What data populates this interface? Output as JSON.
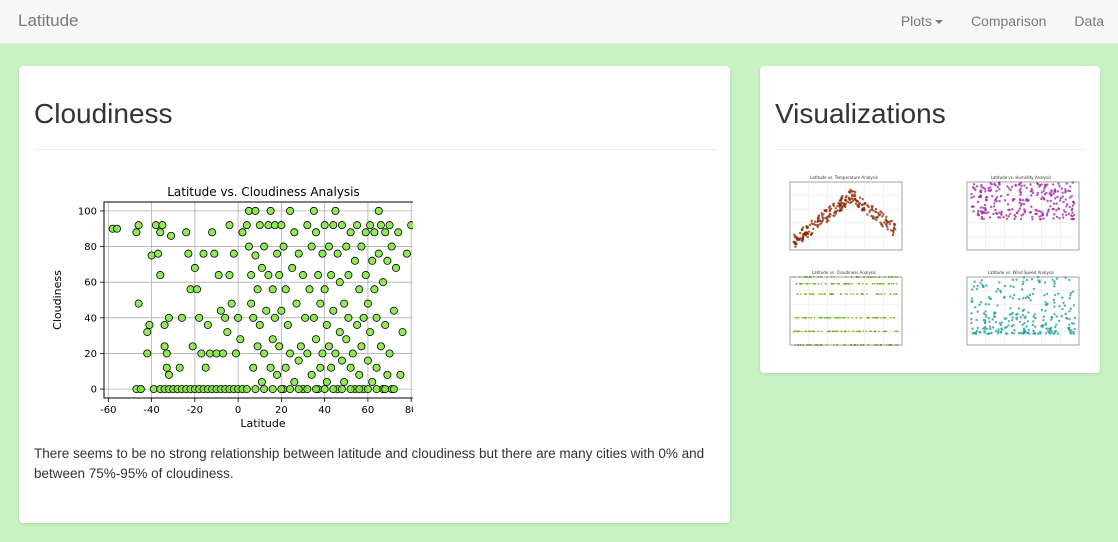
{
  "navbar": {
    "brand": "Latitude",
    "items": [
      {
        "label": "Plots",
        "dropdown": true
      },
      {
        "label": "Comparison"
      },
      {
        "label": "Data"
      }
    ]
  },
  "main": {
    "title": "Cloudiness",
    "description": "There seems to be no strong relationship between latitude and cloudiness but there are many cities with 0% and between 75%-95% of cloudiness."
  },
  "sidebar": {
    "title": "Visualizations",
    "thumbnails": [
      {
        "title": "Latitude vs. Temperature Analysis",
        "color": "#8b2500"
      },
      {
        "title": "Latitude vs. Humidity Analysis",
        "color": "#9b1fa0"
      },
      {
        "title": "Latitude vs. Cloudiness Analysis",
        "color": "#5fa800"
      },
      {
        "title": "Latitude vs. Wind Speed Analysis",
        "color": "#1a9a9a"
      }
    ]
  },
  "chart_data": {
    "type": "scatter",
    "title": "Latitude vs. Cloudiness Analysis",
    "xlabel": "Latitude",
    "ylabel": "Cloudiness",
    "xlim": [
      -62,
      85
    ],
    "ylim": [
      -5,
      105
    ],
    "xticks": [
      -60,
      -40,
      -20,
      0,
      20,
      40,
      60,
      80
    ],
    "yticks": [
      0,
      20,
      40,
      60,
      80,
      100
    ],
    "grid": true,
    "marker_color": "#7ee83a",
    "marker_edge": "#000000",
    "points": [
      [
        -58,
        90
      ],
      [
        -56,
        90
      ],
      [
        -47,
        88
      ],
      [
        -46,
        92
      ],
      [
        -46,
        48
      ],
      [
        -45,
        0
      ],
      [
        -42,
        32
      ],
      [
        -41,
        36
      ],
      [
        -40,
        75
      ],
      [
        -38,
        92
      ],
      [
        -37,
        76
      ],
      [
        -36,
        88
      ],
      [
        -36,
        64
      ],
      [
        -35,
        92
      ],
      [
        -34,
        36
      ],
      [
        -34,
        24
      ],
      [
        -33,
        20
      ],
      [
        -33,
        12
      ],
      [
        -32,
        8
      ],
      [
        -32,
        40
      ],
      [
        -31,
        86
      ],
      [
        -42,
        20
      ],
      [
        -47,
        0
      ],
      [
        -45,
        0
      ],
      [
        -39,
        0
      ],
      [
        -36,
        0
      ],
      [
        -34,
        0
      ],
      [
        -32,
        0
      ],
      [
        -30,
        0
      ],
      [
        -28,
        0
      ],
      [
        -26,
        0
      ],
      [
        -24,
        0
      ],
      [
        -22,
        0
      ],
      [
        -20,
        0
      ],
      [
        -18,
        0
      ],
      [
        -16,
        0
      ],
      [
        -14,
        0
      ],
      [
        -12,
        0
      ],
      [
        -10,
        0
      ],
      [
        -8,
        0
      ],
      [
        -6,
        0
      ],
      [
        -4,
        0
      ],
      [
        -2,
        0
      ],
      [
        0,
        0
      ],
      [
        2,
        0
      ],
      [
        4,
        0
      ],
      [
        -27,
        12
      ],
      [
        -26,
        40
      ],
      [
        -24,
        88
      ],
      [
        -23,
        76
      ],
      [
        -22,
        56
      ],
      [
        -21,
        24
      ],
      [
        -20,
        68
      ],
      [
        -19,
        56
      ],
      [
        -18,
        40
      ],
      [
        -17,
        20
      ],
      [
        -16,
        76
      ],
      [
        -15,
        12
      ],
      [
        -14,
        36
      ],
      [
        -13,
        20
      ],
      [
        -12,
        88
      ],
      [
        -11,
        76
      ],
      [
        -10,
        20
      ],
      [
        -9,
        64
      ],
      [
        -8,
        44
      ],
      [
        -7,
        20
      ],
      [
        -6,
        40
      ],
      [
        -5,
        32
      ],
      [
        -4,
        92
      ],
      [
        -4,
        64
      ],
      [
        -3,
        48
      ],
      [
        -2,
        76
      ],
      [
        -1,
        20
      ],
      [
        0,
        40
      ],
      [
        1,
        28
      ],
      [
        2,
        88
      ],
      [
        4,
        92
      ],
      [
        5,
        100
      ],
      [
        5,
        80
      ],
      [
        6,
        64
      ],
      [
        6,
        48
      ],
      [
        7,
        40
      ],
      [
        7,
        12
      ],
      [
        8,
        100
      ],
      [
        8,
        75
      ],
      [
        9,
        56
      ],
      [
        9,
        24
      ],
      [
        10,
        92
      ],
      [
        10,
        36
      ],
      [
        11,
        68
      ],
      [
        11,
        4
      ],
      [
        12,
        80
      ],
      [
        12,
        20
      ],
      [
        13,
        44
      ],
      [
        14,
        92
      ],
      [
        14,
        64
      ],
      [
        15,
        100
      ],
      [
        15,
        12
      ],
      [
        16,
        56
      ],
      [
        16,
        28
      ],
      [
        17,
        92
      ],
      [
        17,
        40
      ],
      [
        18,
        76
      ],
      [
        18,
        8
      ],
      [
        19,
        64
      ],
      [
        19,
        24
      ],
      [
        20,
        92
      ],
      [
        20,
        44
      ],
      [
        21,
        80
      ],
      [
        21,
        0
      ],
      [
        22,
        56
      ],
      [
        22,
        12
      ],
      [
        23,
        36
      ],
      [
        24,
        100
      ],
      [
        24,
        20
      ],
      [
        25,
        68
      ],
      [
        26,
        88
      ],
      [
        26,
        4
      ],
      [
        27,
        48
      ],
      [
        28,
        76
      ],
      [
        28,
        16
      ],
      [
        29,
        24
      ],
      [
        30,
        64
      ],
      [
        30,
        0
      ],
      [
        31,
        40
      ],
      [
        32,
        92
      ],
      [
        32,
        20
      ],
      [
        33,
        56
      ],
      [
        34,
        80
      ],
      [
        34,
        8
      ],
      [
        35,
        100
      ],
      [
        35,
        40
      ],
      [
        36,
        88
      ],
      [
        36,
        28
      ],
      [
        37,
        64
      ],
      [
        37,
        0
      ],
      [
        38,
        48
      ],
      [
        38,
        12
      ],
      [
        39,
        76
      ],
      [
        39,
        20
      ],
      [
        40,
        92
      ],
      [
        40,
        56
      ],
      [
        41,
        36
      ],
      [
        41,
        4
      ],
      [
        42,
        80
      ],
      [
        42,
        24
      ],
      [
        43,
        64
      ],
      [
        43,
        12
      ],
      [
        44,
        92
      ],
      [
        44,
        44
      ],
      [
        45,
        100
      ],
      [
        45,
        20
      ],
      [
        46,
        76
      ],
      [
        46,
        0
      ],
      [
        47,
        60
      ],
      [
        47,
        32
      ],
      [
        48,
        92
      ],
      [
        48,
        16
      ],
      [
        49,
        48
      ],
      [
        49,
        4
      ],
      [
        50,
        80
      ],
      [
        50,
        28
      ],
      [
        51,
        64
      ],
      [
        51,
        40
      ],
      [
        52,
        88
      ],
      [
        52,
        12
      ],
      [
        53,
        20
      ],
      [
        54,
        72
      ],
      [
        54,
        0
      ],
      [
        55,
        92
      ],
      [
        55,
        36
      ],
      [
        56,
        56
      ],
      [
        56,
        8
      ],
      [
        57,
        80
      ],
      [
        57,
        24
      ],
      [
        58,
        40
      ],
      [
        58,
        0
      ],
      [
        59,
        88
      ],
      [
        59,
        64
      ],
      [
        60,
        16
      ],
      [
        60,
        48
      ],
      [
        61,
        92
      ],
      [
        61,
        32
      ],
      [
        62,
        72
      ],
      [
        62,
        4
      ],
      [
        63,
        88
      ],
      [
        63,
        56
      ],
      [
        64,
        40
      ],
      [
        64,
        12
      ],
      [
        65,
        100
      ],
      [
        65,
        76
      ],
      [
        66,
        92
      ],
      [
        66,
        24
      ],
      [
        67,
        60
      ],
      [
        67,
        0
      ],
      [
        68,
        88
      ],
      [
        68,
        36
      ],
      [
        69,
        72
      ],
      [
        69,
        8
      ],
      [
        70,
        92
      ],
      [
        70,
        20
      ],
      [
        71,
        80
      ],
      [
        71,
        0
      ],
      [
        72,
        44
      ],
      [
        73,
        68
      ],
      [
        74,
        88
      ],
      [
        75,
        8
      ],
      [
        76,
        32
      ],
      [
        78,
        76
      ],
      [
        80,
        92
      ],
      [
        24,
        0
      ],
      [
        28,
        0
      ],
      [
        32,
        0
      ],
      [
        36,
        0
      ],
      [
        40,
        0
      ],
      [
        44,
        0
      ],
      [
        48,
        0
      ],
      [
        52,
        0
      ],
      [
        56,
        0
      ],
      [
        60,
        0
      ],
      [
        64,
        0
      ],
      [
        68,
        0
      ],
      [
        72,
        0
      ],
      [
        8,
        0
      ],
      [
        12,
        0
      ],
      [
        16,
        0
      ],
      [
        20,
        0
      ]
    ]
  }
}
